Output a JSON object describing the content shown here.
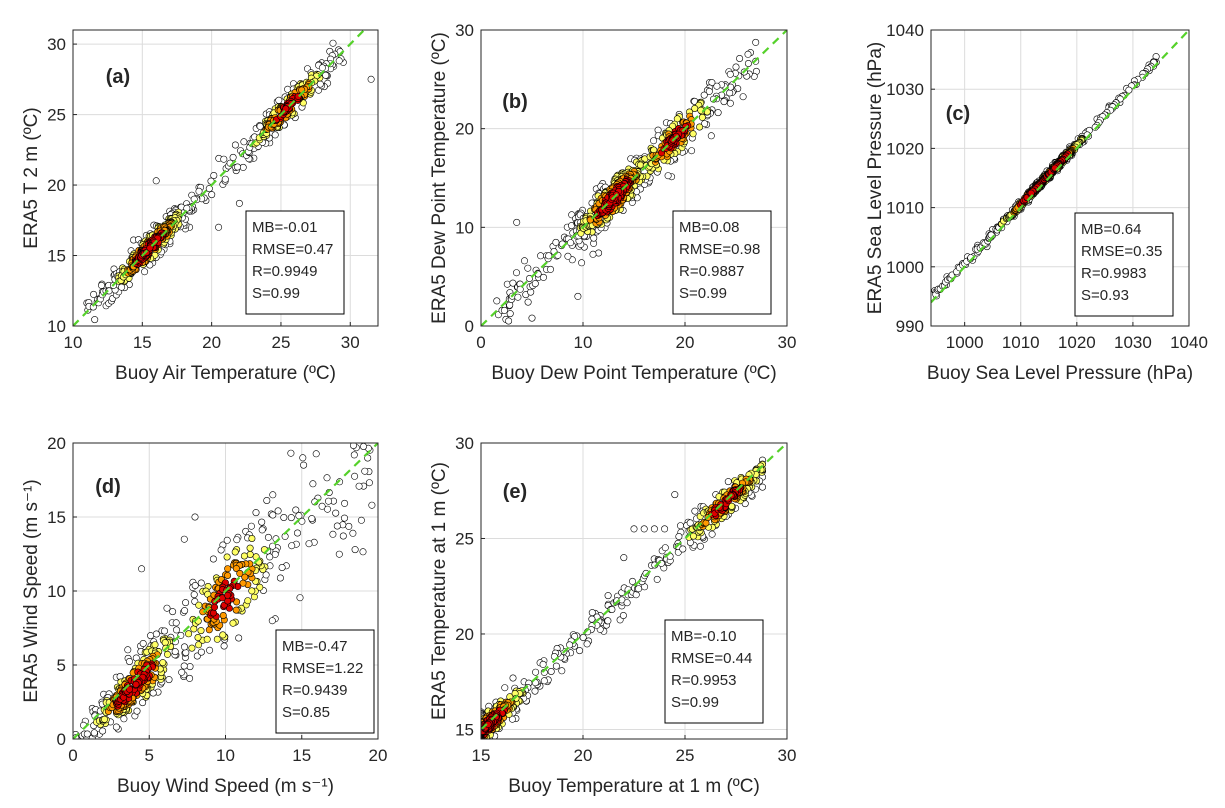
{
  "figure": {
    "background": "#ffffff",
    "grid_color": "#dcdcdc",
    "axis_color": "#262626",
    "one_to_one_line_color": "#55d12a"
  },
  "chart_data": [
    {
      "type": "scatter",
      "panel_label": "(a)",
      "xlabel": "Buoy Air Temperature (ºC)",
      "ylabel": "ERA5 T 2 m (ºC)",
      "xlim": [
        10,
        32
      ],
      "ylim": [
        10,
        31
      ],
      "xticks": [
        10,
        15,
        20,
        25,
        30
      ],
      "yticks": [
        10,
        15,
        20,
        25,
        30
      ],
      "grid": true,
      "one_to_one_line": true,
      "density_colormap": [
        "#ffffff",
        "#ffff66",
        "#ff9900",
        "#dd0000"
      ],
      "stats": [
        "MB=-0.01",
        "RMSE=0.47",
        "R=0.9949",
        "S=0.99"
      ],
      "point_cloud": {
        "x_range": [
          11,
          29.5
        ],
        "spread": 0.55,
        "bias": 0.0,
        "mode_at": 15.5,
        "second_mode_at": 25.5,
        "outliers": [
          [
            31.5,
            27.5
          ],
          [
            29.5,
            28.7
          ],
          [
            20.5,
            17.0
          ],
          [
            22.0,
            18.7
          ],
          [
            16.0,
            20.3
          ]
        ]
      }
    },
    {
      "type": "scatter",
      "panel_label": "(b)",
      "xlabel": "Buoy Dew Point Temperature (ºC)",
      "ylabel": "ERA5 Dew Point Temperature (ºC)",
      "xlim": [
        0,
        30
      ],
      "ylim": [
        0,
        30
      ],
      "xticks": [
        0,
        10,
        20,
        30
      ],
      "yticks": [
        0,
        10,
        20,
        30
      ],
      "grid": true,
      "one_to_one_line": true,
      "density_colormap": [
        "#ffffff",
        "#ffff66",
        "#ff9900",
        "#dd0000"
      ],
      "stats": [
        "MB=0.08",
        "RMSE=0.98",
        "R=0.9887",
        "S=0.99"
      ],
      "point_cloud": {
        "x_range": [
          1.5,
          27
        ],
        "spread": 1.1,
        "bias": 0.0,
        "mode_at": 13,
        "second_mode_at": 19,
        "outliers": [
          [
            3.5,
            10.5
          ],
          [
            5.0,
            0.8
          ],
          [
            27.0,
            25.8
          ],
          [
            9.5,
            3.0
          ]
        ]
      }
    },
    {
      "type": "scatter",
      "panel_label": "(c)",
      "xlabel": "Buoy Sea Level Pressure (hPa)",
      "ylabel": "ERA5 Sea Level Pressure (hPa)",
      "xlim": [
        994,
        1040
      ],
      "ylim": [
        990,
        1040
      ],
      "xticks": [
        1000,
        1010,
        1020,
        1030,
        1040
      ],
      "yticks": [
        990,
        1000,
        1010,
        1020,
        1030,
        1040
      ],
      "grid": true,
      "one_to_one_line": true,
      "density_colormap": [
        "#ffffff",
        "#ffff66",
        "#ff9900",
        "#dd0000"
      ],
      "stats": [
        "MB=0.64",
        "RMSE=0.35",
        "R=0.9983",
        "S=0.93"
      ],
      "point_cloud": {
        "x_range": [
          994.5,
          1034.5
        ],
        "spread": 0.35,
        "bias": 0.6,
        "mode_at": 1016,
        "second_mode_at": 1012,
        "outliers": []
      }
    },
    {
      "type": "scatter",
      "panel_label": "(d)",
      "xlabel": "Buoy Wind Speed (m s⁻¹)",
      "ylabel": "ERA5 Wind Speed (m s⁻¹)",
      "xlim": [
        0,
        20
      ],
      "ylim": [
        0,
        20
      ],
      "xticks": [
        0,
        5,
        10,
        15,
        20
      ],
      "yticks": [
        0,
        5,
        10,
        15,
        20
      ],
      "grid": true,
      "one_to_one_line": true,
      "density_colormap": [
        "#ffffff",
        "#ffff66",
        "#ff9900",
        "#dd0000"
      ],
      "stats": [
        "MB=-0.47",
        "RMSE=1.22",
        "R=0.9439",
        "S=0.85"
      ],
      "point_cloud": {
        "x_range": [
          0,
          19.5
        ],
        "spread": 1.3,
        "bias": -0.4,
        "mode_at": 4,
        "second_mode_at": 10,
        "outliers": [
          [
            19.6,
            15.8
          ],
          [
            7.3,
            13.5
          ],
          [
            8.0,
            15.0
          ],
          [
            12.0,
            15.3
          ],
          [
            18.5,
            12.8
          ],
          [
            4.5,
            11.5
          ]
        ]
      }
    },
    {
      "type": "scatter",
      "panel_label": "(e)",
      "xlabel": "Buoy Temperature at 1 m (ºC)",
      "ylabel": "ERA5 Temperature at 1 m (ºC)",
      "xlim": [
        15,
        30
      ],
      "ylim": [
        14.5,
        30
      ],
      "xticks": [
        15,
        20,
        25,
        30
      ],
      "yticks": [
        15,
        20,
        25,
        30
      ],
      "grid": true,
      "one_to_one_line": true,
      "density_colormap": [
        "#ffffff",
        "#ffff66",
        "#ff9900",
        "#dd0000"
      ],
      "stats": [
        "MB=-0.10",
        "RMSE=0.44",
        "R=0.9953",
        "S=0.99"
      ],
      "point_cloud": {
        "x_range": [
          15,
          28.8
        ],
        "spread": 0.45,
        "bias": -0.1,
        "mode_at": 15.3,
        "second_mode_at": 27,
        "outliers": [
          [
            22.5,
            25.5
          ],
          [
            23.0,
            25.5
          ],
          [
            23.5,
            25.5
          ],
          [
            24.0,
            25.5
          ],
          [
            24.5,
            27.3
          ],
          [
            22.0,
            24.0
          ]
        ]
      }
    }
  ]
}
